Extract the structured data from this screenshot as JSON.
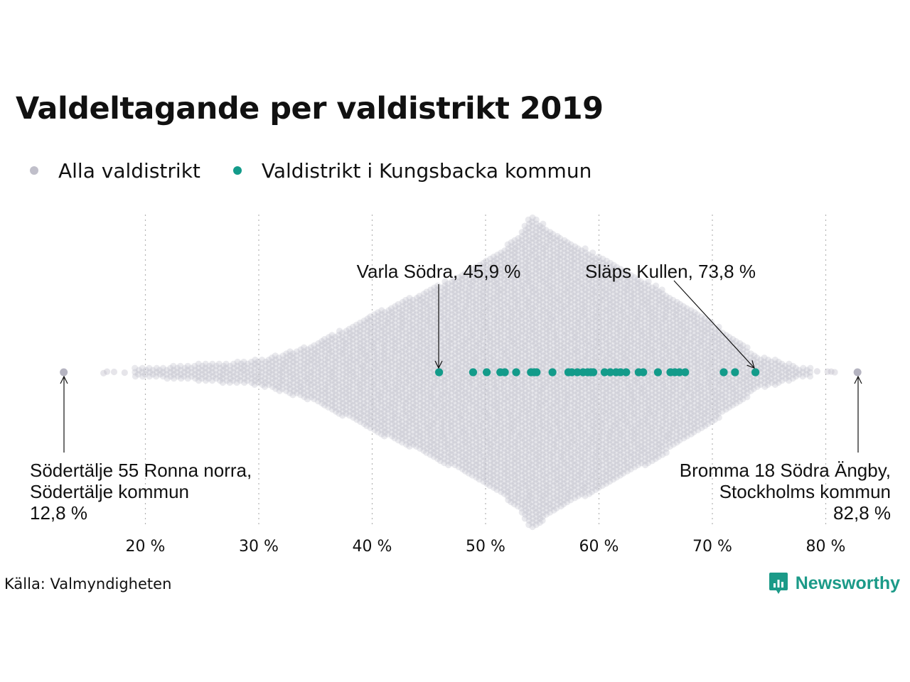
{
  "title": "Valdeltagande per valdistrikt 2019",
  "legend": [
    {
      "label": "Alla valdistrikt",
      "color": "#c0bfca"
    },
    {
      "label": "Valdistrikt i Kungsbacka kommun",
      "color": "#139b8a"
    }
  ],
  "source": "Källa: Valmyndigheten",
  "brand": "Newsworthy",
  "chart_data": {
    "type": "scatter",
    "subtype": "beeswarm",
    "xlim": [
      7,
      86
    ],
    "x_ticks": [
      20,
      30,
      40,
      50,
      60,
      70,
      80
    ],
    "x_tick_labels": [
      "20 %",
      "30 %",
      "40 %",
      "50 %",
      "60 %",
      "70 %",
      "80 %"
    ],
    "x_unit": "%",
    "grid": "vertical-dotted",
    "series": [
      {
        "name": "Alla valdistrikt",
        "color": "#c0bfca",
        "values": [
          12.8,
          82.8
        ],
        "distribution_shape": [
          [
            16,
            0.3
          ],
          [
            20,
            1
          ],
          [
            25,
            2
          ],
          [
            30,
            3
          ],
          [
            35,
            7
          ],
          [
            40,
            14
          ],
          [
            45,
            20
          ],
          [
            50,
            27
          ],
          [
            53,
            33
          ],
          [
            54,
            38
          ],
          [
            56,
            34
          ],
          [
            60,
            28
          ],
          [
            65,
            21
          ],
          [
            70,
            12
          ],
          [
            74,
            4
          ],
          [
            78,
            1
          ],
          [
            81,
            0.3
          ]
        ]
      },
      {
        "name": "Valdistrikt i Kungsbacka kommun",
        "color": "#139b8a",
        "values": [
          45.9,
          48.9,
          50.1,
          51.3,
          51.7,
          52.7,
          54.0,
          54.3,
          54.5,
          55.9,
          57.3,
          57.6,
          58.1,
          58.6,
          59.0,
          59.3,
          59.5,
          60.5,
          61.0,
          61.5,
          61.9,
          62.4,
          63.5,
          63.9,
          65.2,
          66.3,
          66.7,
          67.1,
          67.6,
          71.0,
          72.0,
          73.8
        ]
      }
    ],
    "annotations": [
      {
        "text_lines": [
          "Varla Södra, 45,9 %"
        ],
        "x": 45.9,
        "series": "Valdistrikt i Kungsbacka kommun",
        "position": "above"
      },
      {
        "text_lines": [
          "Släps Kullen, 73,8 %"
        ],
        "x": 73.8,
        "series": "Valdistrikt i Kungsbacka kommun",
        "position": "above"
      },
      {
        "text_lines": [
          "Södertälje 55 Ronna norra,",
          "Södertälje kommun",
          "12,8 %"
        ],
        "x": 12.8,
        "series": "Alla valdistrikt",
        "position": "below-left"
      },
      {
        "text_lines": [
          "Bromma 18 Södra Ängby,",
          "Stockholms kommun",
          "82,8 %"
        ],
        "x": 82.8,
        "series": "Alla valdistrikt",
        "position": "below-right"
      }
    ]
  }
}
